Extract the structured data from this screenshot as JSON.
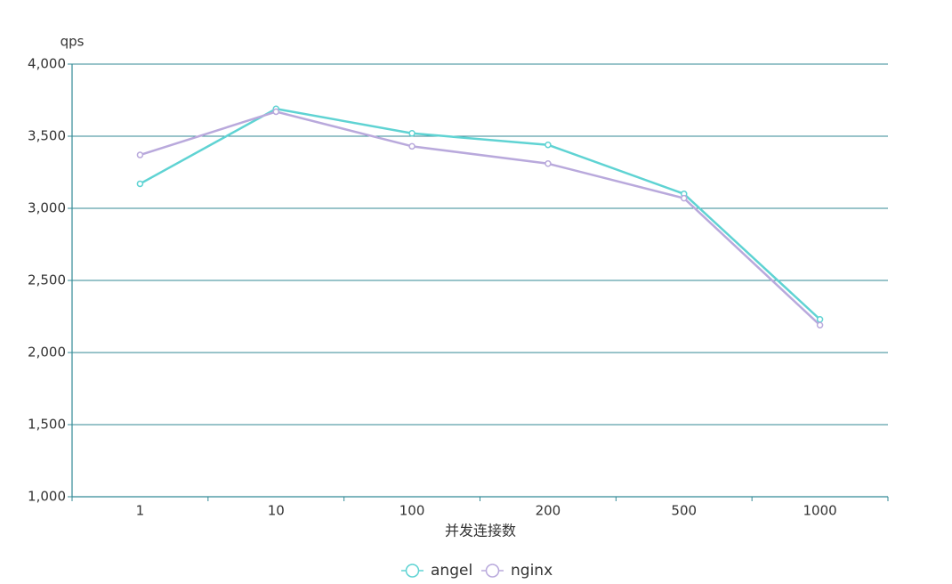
{
  "chart_data": {
    "type": "line",
    "categories": [
      "1",
      "10",
      "100",
      "200",
      "500",
      "1000"
    ],
    "series": [
      {
        "name": "angel",
        "values": [
          3170,
          3690,
          3520,
          3440,
          3100,
          2230
        ],
        "color": "#5fd3d3"
      },
      {
        "name": "nginx",
        "values": [
          3370,
          3670,
          3430,
          3310,
          3070,
          2190
        ],
        "color": "#b9a9dc"
      }
    ],
    "xlabel": "并发连接数",
    "ylabel": "qps",
    "ylim": [
      1000,
      4000
    ],
    "yticks": [
      1000,
      1500,
      2000,
      2500,
      3000,
      3500,
      4000
    ],
    "ytick_labels": [
      "1,000",
      "1,500",
      "2,000",
      "2,500",
      "3,000",
      "3,500",
      "4,000"
    ],
    "grid": true,
    "grid_color": "#338a96",
    "marker": "circle",
    "legend": "bottom-center"
  }
}
